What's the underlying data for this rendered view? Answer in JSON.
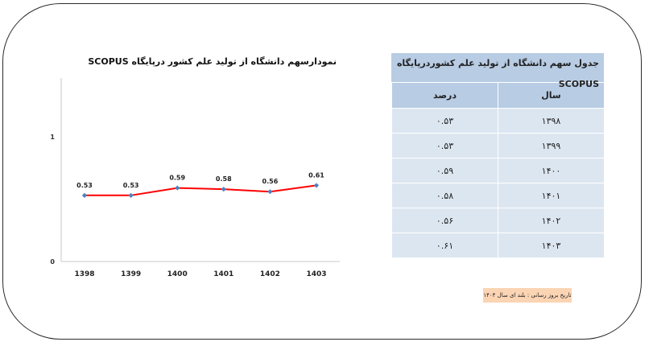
{
  "chart_data": {
    "type": "line",
    "title": "نمودارسهم دانشگاه از تولید علم کشور درپایگاه SCOPUS",
    "categories": [
      "1398",
      "1399",
      "1400",
      "1401",
      "1402",
      "1403"
    ],
    "series": [
      {
        "values": [
          0.53,
          0.53,
          0.59,
          0.58,
          0.56,
          0.61
        ]
      }
    ],
    "data_labels": [
      "0.53",
      "0.53",
      "0.59",
      "0.58",
      "0.56",
      "0.61"
    ],
    "yticks": [
      "0",
      "1"
    ],
    "ylim": [
      0,
      1
    ],
    "grid": false,
    "line_color": "#ff0000",
    "marker_color": "#4f81bd"
  },
  "table": {
    "title": "جدول سهم دانشگاه از تولید علم کشوردرپایگاه SCOPUS",
    "headers": {
      "year": "سال",
      "percent": "درصد"
    },
    "rows": [
      {
        "year": "۱۳۹۸",
        "percent": "۰.۵۳"
      },
      {
        "year": "۱۳۹۹",
        "percent": "۰.۵۳"
      },
      {
        "year": "۱۴۰۰",
        "percent": "۰.۵۹"
      },
      {
        "year": "۱۴۰۱",
        "percent": "۰.۵۸"
      },
      {
        "year": "۱۴۰۲",
        "percent": "۰.۵۶"
      },
      {
        "year": "۱۴۰۳",
        "percent": "۰.۶۱"
      }
    ]
  },
  "note": "تاریخ بروز رسانی : بلند ای سال ۱۴۰۴",
  "colors": {
    "header_bg": "#b8cce4",
    "row_bg": "#dce6f1",
    "note_bg": "#fbd4b4"
  }
}
